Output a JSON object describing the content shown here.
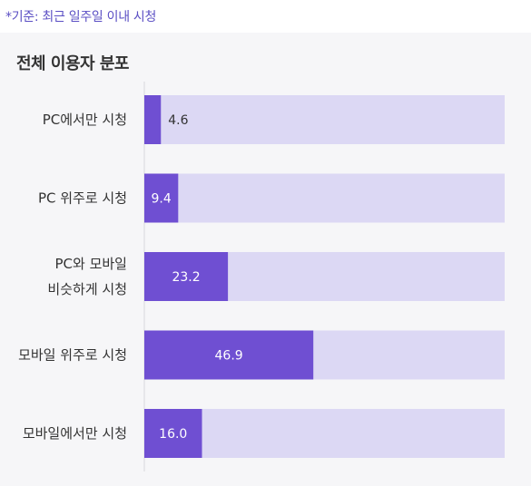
{
  "note": "*기준: 최근 일주일 이내 시청",
  "colors": {
    "bar": "#6f4fd2",
    "track": "#dcd8f4",
    "panel": "#f6f6f8",
    "note": "#5b4fc4"
  },
  "chart_data": {
    "type": "bar",
    "orientation": "horizontal",
    "title": "전체 이용자 분포",
    "categories": [
      [
        "PC에서만 시청"
      ],
      [
        "PC 위주로 시청"
      ],
      [
        "PC와 모바일",
        "비슷하게 시청"
      ],
      [
        "모바일 위주로 시청"
      ],
      [
        "모바일에서만 시청"
      ]
    ],
    "values": [
      4.6,
      9.4,
      23.2,
      46.9,
      16.0
    ],
    "value_labels": [
      "4.6",
      "9.4",
      "23.2",
      "46.9",
      "16.0"
    ],
    "xlim": [
      0,
      100
    ],
    "grid": false,
    "legend": "none"
  }
}
